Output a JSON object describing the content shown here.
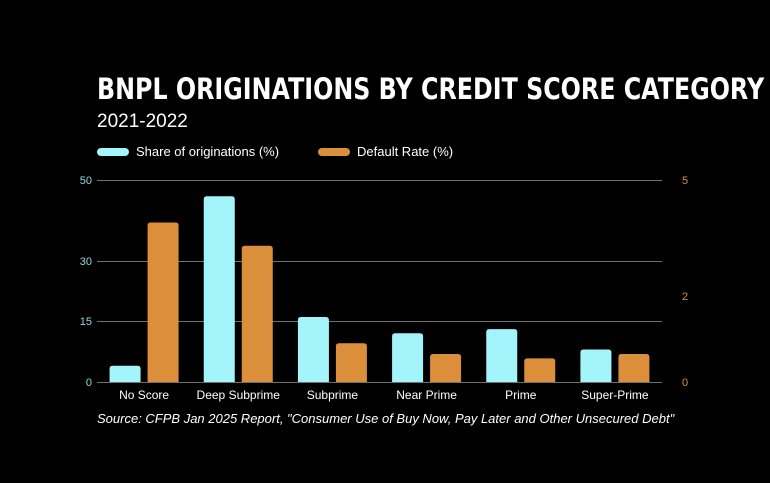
{
  "title": "BNPL ORIGINATIONS BY CREDIT SCORE CATEGORY",
  "subtitle": "2021-2022",
  "source": "Source: CFPB Jan 2025 Report, \"Consumer Use of Buy Now, Pay Later and Other Unsecured Debt\"",
  "colors": {
    "series_share": "#a4f4fb",
    "series_default": "#dc8f3b",
    "left_axis": "#8fd9e6",
    "right_axis": "#dc8f3b",
    "grid": "#6f6f6f",
    "background": "#000000"
  },
  "chart_data": {
    "type": "bar",
    "categories": [
      "No Score",
      "Deep Subprime",
      "Subprime",
      "Near Prime",
      "Prime",
      "Super-Prime"
    ],
    "series": [
      {
        "name": "Share of originations (%)",
        "axis": "left",
        "values": [
          4,
          46,
          16,
          12,
          13,
          8
        ]
      },
      {
        "name": "Default Rate (%)",
        "axis": "right",
        "values": [
          3.9,
          3.3,
          0.9,
          0.65,
          0.55,
          0.65
        ]
      }
    ],
    "left_axis": {
      "ticks": [
        "0",
        "15",
        "30",
        "50"
      ]
    },
    "right_axis": {
      "ticks": [
        "0",
        "2",
        "5"
      ]
    },
    "grid": true,
    "legend": "top-left"
  }
}
